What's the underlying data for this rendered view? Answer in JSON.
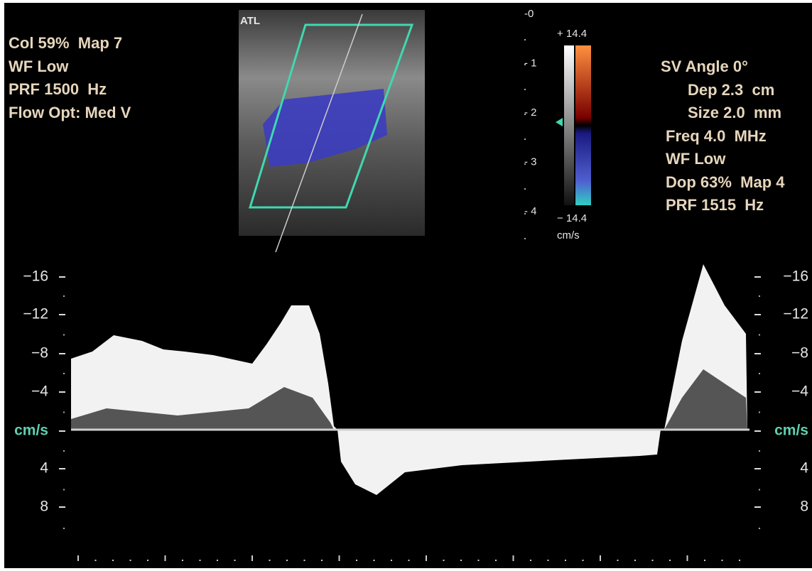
{
  "logo": "ATL",
  "left_panel": {
    "lines": [
      "Col 59%  Map 7",
      "WF Low",
      "PRF 1500  Hz",
      "Flow Opt: Med V"
    ]
  },
  "depth_scale": [
    "-0",
    "- 1",
    "- 2",
    "- 3",
    "- 4"
  ],
  "color_bar": {
    "top": "+ 14.4",
    "bottom": "− 14.4",
    "unit": "cm/s"
  },
  "right_panel": {
    "lines": [
      "SV Angle 0°",
      "Dep 2.3  cm",
      "Size 2.0  mm",
      "Freq 4.0  MHz",
      "WF Low",
      "Dop 63%  Map 4",
      "PRF 1515  Hz"
    ]
  },
  "velocity_scale": {
    "left": [
      "−16",
      "−12",
      "−8",
      "−4",
      "cm/s",
      "4",
      "8"
    ],
    "right": [
      "−16",
      "−12",
      "−8",
      "−4",
      "cm/s",
      "4",
      "8"
    ]
  }
}
